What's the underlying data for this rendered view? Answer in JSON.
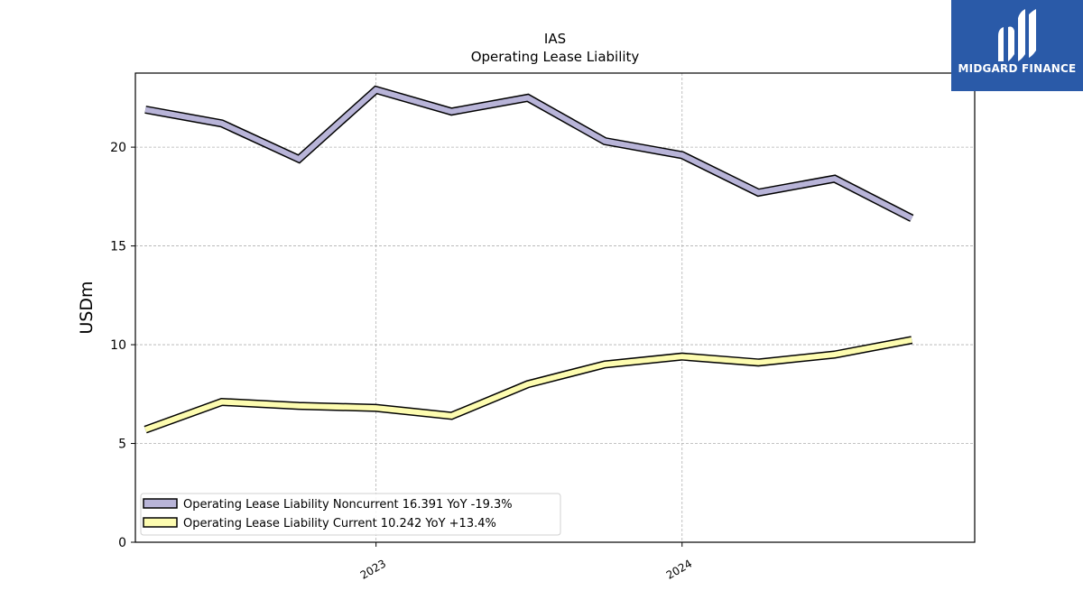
{
  "logo": {
    "text": "MIDGARD FINANCE",
    "background": "#2a5aa8"
  },
  "chart_data": {
    "type": "line",
    "title": "IAS",
    "subtitle": "Operating Lease Liability",
    "ylabel": "USDm",
    "xlabel": "",
    "ylim": [
      0,
      23.75
    ],
    "xlim": [
      "2022-03-20",
      "2024-12-15"
    ],
    "yticks": [
      0,
      5,
      10,
      15,
      20
    ],
    "xticks": [
      {
        "date": "2023-01-01",
        "label": "2023"
      },
      {
        "date": "2024-01-01",
        "label": "2024"
      }
    ],
    "grid": true,
    "legend_position": "lower-left",
    "x": [
      "2022-04-01",
      "2022-07-01",
      "2022-10-01",
      "2023-01-01",
      "2023-04-01",
      "2023-07-01",
      "2023-10-01",
      "2024-01-01",
      "2024-04-01",
      "2024-07-01",
      "2024-10-01"
    ],
    "series": [
      {
        "name": "Operating Lease Liability Noncurrent  16.391 YoY -19.3%",
        "color": "#b8b4d8",
        "values": [
          21.9,
          21.2,
          19.4,
          22.9,
          21.8,
          22.5,
          20.3,
          19.6,
          17.7,
          18.4,
          16.4
        ]
      },
      {
        "name": "Operating Lease Liability Current  10.242 YoY +13.4%",
        "color": "#fdfcb0",
        "values": [
          5.7,
          7.1,
          6.9,
          6.8,
          6.4,
          8.0,
          9.0,
          9.4,
          9.1,
          9.5,
          10.24
        ]
      }
    ]
  }
}
